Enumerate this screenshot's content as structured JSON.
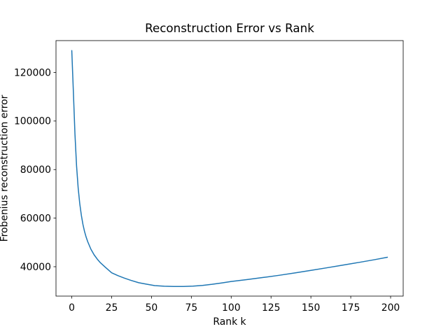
{
  "figure": {
    "background": "#ffffff",
    "spine_color": "#000000",
    "text_color": "#000000"
  },
  "chart_data": {
    "type": "line",
    "title": "Reconstruction Error vs Rank",
    "xlabel": "Rank k",
    "ylabel": "Frobenius reconstruction error",
    "grid": false,
    "legend": "none",
    "xlim": [
      -9.9,
      207.9
    ],
    "ylim": [
      27890,
      133120
    ],
    "xticks": [
      0,
      25,
      50,
      75,
      100,
      125,
      150,
      175,
      200
    ],
    "yticks": [
      40000,
      60000,
      80000,
      100000,
      120000
    ],
    "x": [
      0,
      1,
      2,
      3,
      4,
      5,
      6,
      7,
      8,
      9,
      10,
      12,
      14,
      16,
      18,
      21,
      25,
      29,
      33,
      37,
      42,
      47,
      52,
      58,
      64,
      70,
      76,
      82,
      88,
      94,
      100,
      110,
      120,
      130,
      140,
      150,
      160,
      170,
      180,
      190,
      198
    ],
    "series": [
      {
        "name": "frobenius-reconstruction-error",
        "color": "#1f77b4",
        "line_width": 1.5,
        "values": [
          129000,
          112000,
          94500,
          81500,
          72500,
          66000,
          61200,
          57400,
          54500,
          52200,
          50300,
          47200,
          44900,
          43100,
          41600,
          39800,
          37500,
          36300,
          35300,
          34400,
          33400,
          32800,
          32200,
          31950,
          31850,
          31850,
          32000,
          32300,
          32750,
          33300,
          33900,
          34700,
          35550,
          36450,
          37450,
          38500,
          39550,
          40650,
          41750,
          42900,
          43900
        ]
      }
    ]
  }
}
